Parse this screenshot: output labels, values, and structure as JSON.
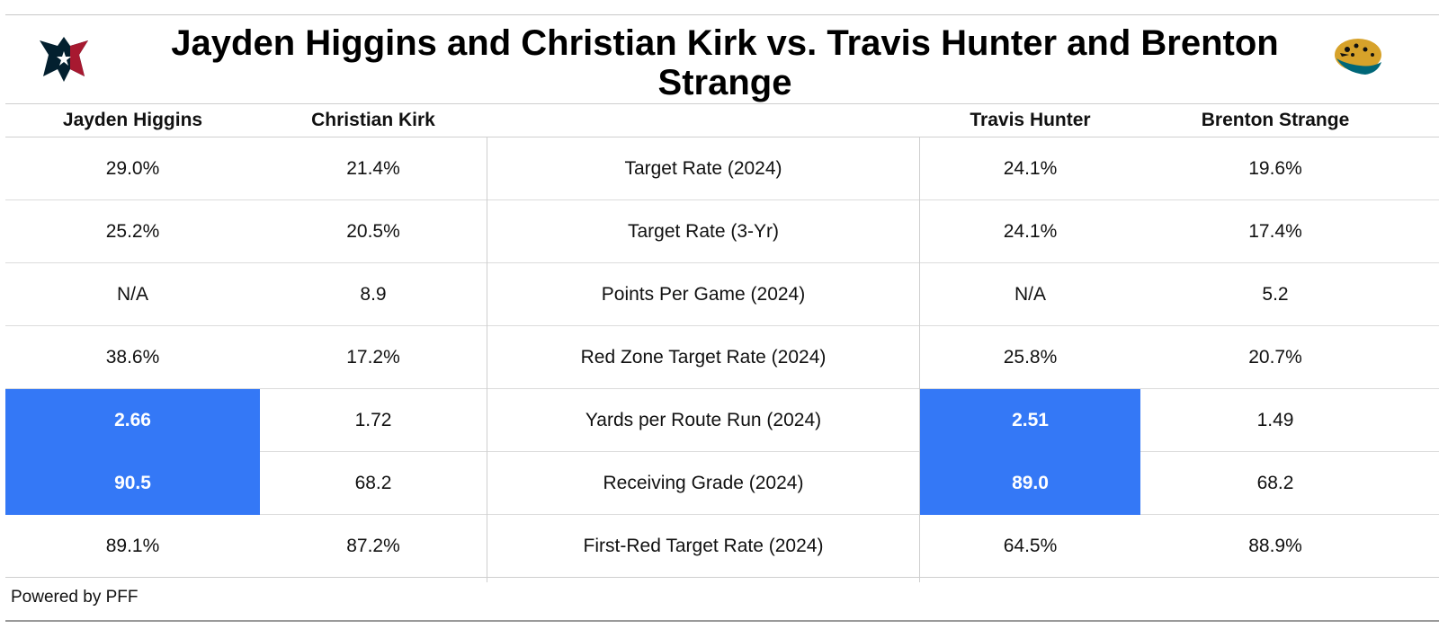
{
  "title": "Jayden Higgins and Christian Kirk vs. Travis Hunter and Brenton Strange",
  "logos": {
    "left": "houston-texans-logo",
    "right": "jacksonville-jaguars-logo"
  },
  "colors": {
    "highlight": "#3478f6",
    "texans_navy": "#03202f",
    "texans_red": "#a71930",
    "jaguars_teal": "#006778",
    "jaguars_gold": "#d7a22a"
  },
  "footer": "Powered by PFF",
  "chart_data": {
    "type": "table",
    "columns": [
      "Jayden Higgins",
      "Christian Kirk",
      "",
      "Travis Hunter",
      "Brenton Strange"
    ],
    "rows": [
      {
        "metric": "Target Rate (2024)",
        "values": [
          "29.0%",
          "21.4%",
          "24.1%",
          "19.6%"
        ],
        "highlight": [
          false,
          false,
          false,
          false
        ]
      },
      {
        "metric": "Target Rate (3-Yr)",
        "values": [
          "25.2%",
          "20.5%",
          "24.1%",
          "17.4%"
        ],
        "highlight": [
          false,
          false,
          false,
          false
        ]
      },
      {
        "metric": "Points Per Game (2024)",
        "values": [
          "N/A",
          "8.9",
          "N/A",
          "5.2"
        ],
        "highlight": [
          false,
          false,
          false,
          false
        ]
      },
      {
        "metric": "Red Zone Target Rate (2024)",
        "values": [
          "38.6%",
          "17.2%",
          "25.8%",
          "20.7%"
        ],
        "highlight": [
          false,
          false,
          false,
          false
        ]
      },
      {
        "metric": "Yards per Route Run (2024)",
        "values": [
          "2.66",
          "1.72",
          "2.51",
          "1.49"
        ],
        "highlight": [
          true,
          false,
          true,
          false
        ]
      },
      {
        "metric": "Receiving Grade (2024)",
        "values": [
          "90.5",
          "68.2",
          "89.0",
          "68.2"
        ],
        "highlight": [
          true,
          false,
          true,
          false
        ]
      },
      {
        "metric": "First-Red Target Rate (2024)",
        "values": [
          "89.1%",
          "87.2%",
          "64.5%",
          "88.9%"
        ],
        "highlight": [
          false,
          false,
          false,
          false
        ]
      }
    ]
  }
}
